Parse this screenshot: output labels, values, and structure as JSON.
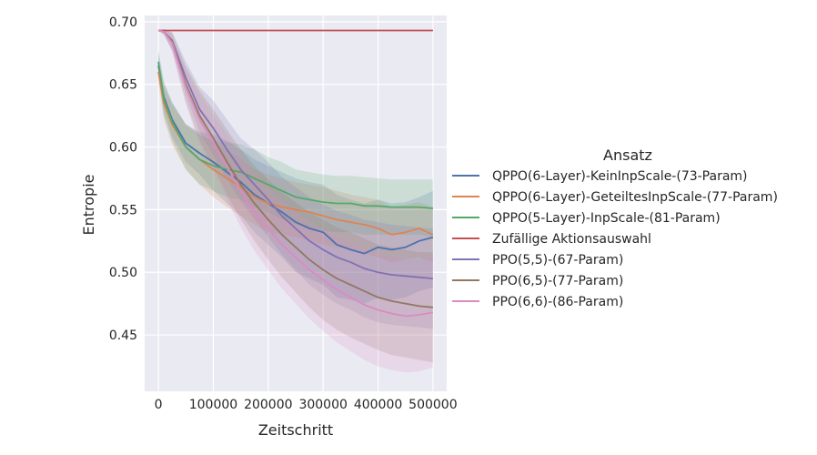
{
  "chart_data": {
    "type": "line",
    "xlabel": "Zeitschritt",
    "ylabel": "Entropie",
    "xlim": [
      -25000,
      525000
    ],
    "ylim": [
      0.405,
      0.705
    ],
    "xticks": [
      0,
      100000,
      200000,
      300000,
      400000,
      500000
    ],
    "xtick_labels": [
      "0",
      "100000",
      "200000",
      "300000",
      "400000",
      "500000"
    ],
    "yticks": [
      0.45,
      0.5,
      0.55,
      0.6,
      0.65,
      0.7
    ],
    "ytick_labels": [
      "0.45",
      "0.50",
      "0.55",
      "0.60",
      "0.65",
      "0.70"
    ],
    "grid": true,
    "legend": {
      "title": "Ansatz",
      "placement": "right"
    },
    "series": [
      {
        "name": "QPPO(6-Layer)-KeinInpScale-(73-Param)",
        "color": "#4c72b0",
        "x": [
          0,
          10000,
          25000,
          50000,
          75000,
          100000,
          125000,
          150000,
          175000,
          200000,
          225000,
          250000,
          275000,
          300000,
          325000,
          350000,
          375000,
          400000,
          425000,
          450000,
          475000,
          500000
        ],
        "y": [
          0.665,
          0.64,
          0.622,
          0.603,
          0.595,
          0.588,
          0.58,
          0.572,
          0.562,
          0.555,
          0.548,
          0.54,
          0.535,
          0.532,
          0.522,
          0.518,
          0.515,
          0.52,
          0.518,
          0.52,
          0.525,
          0.528
        ],
        "lower": [
          0.655,
          0.628,
          0.608,
          0.588,
          0.578,
          0.565,
          0.555,
          0.545,
          0.532,
          0.522,
          0.512,
          0.5,
          0.495,
          0.49,
          0.48,
          0.478,
          0.475,
          0.48,
          0.478,
          0.48,
          0.485,
          0.488
        ],
        "upper": [
          0.675,
          0.652,
          0.636,
          0.618,
          0.612,
          0.61,
          0.605,
          0.598,
          0.59,
          0.585,
          0.58,
          0.575,
          0.572,
          0.57,
          0.562,
          0.558,
          0.555,
          0.558,
          0.555,
          0.556,
          0.56,
          0.565
        ]
      },
      {
        "name": "QPPO(6-Layer)-GeteiltesInpScale-(77-Param)",
        "color": "#dd8452",
        "x": [
          0,
          10000,
          25000,
          50000,
          75000,
          100000,
          125000,
          150000,
          175000,
          200000,
          225000,
          250000,
          275000,
          300000,
          325000,
          350000,
          375000,
          400000,
          425000,
          450000,
          475000,
          500000
        ],
        "y": [
          0.66,
          0.635,
          0.618,
          0.6,
          0.59,
          0.582,
          0.575,
          0.568,
          0.56,
          0.555,
          0.552,
          0.55,
          0.548,
          0.545,
          0.542,
          0.54,
          0.538,
          0.535,
          0.53,
          0.532,
          0.535,
          0.53
        ],
        "lower": [
          0.65,
          0.622,
          0.602,
          0.582,
          0.57,
          0.56,
          0.552,
          0.545,
          0.538,
          0.532,
          0.53,
          0.528,
          0.525,
          0.522,
          0.52,
          0.518,
          0.515,
          0.512,
          0.508,
          0.51,
          0.512,
          0.508
        ],
        "upper": [
          0.67,
          0.648,
          0.634,
          0.618,
          0.61,
          0.604,
          0.598,
          0.59,
          0.582,
          0.578,
          0.575,
          0.572,
          0.57,
          0.568,
          0.565,
          0.562,
          0.56,
          0.558,
          0.552,
          0.554,
          0.556,
          0.552
        ]
      },
      {
        "name": "QPPO(5-Layer)-InpScale-(81-Param)",
        "color": "#55a868",
        "x": [
          0,
          10000,
          25000,
          50000,
          75000,
          100000,
          125000,
          150000,
          175000,
          200000,
          225000,
          250000,
          275000,
          300000,
          325000,
          350000,
          375000,
          400000,
          425000,
          450000,
          475000,
          500000
        ],
        "y": [
          0.668,
          0.638,
          0.62,
          0.6,
          0.59,
          0.585,
          0.582,
          0.58,
          0.575,
          0.57,
          0.565,
          0.56,
          0.558,
          0.556,
          0.555,
          0.555,
          0.553,
          0.553,
          0.552,
          0.552,
          0.552,
          0.551
        ],
        "lower": [
          0.658,
          0.625,
          0.605,
          0.582,
          0.57,
          0.565,
          0.56,
          0.558,
          0.552,
          0.548,
          0.542,
          0.538,
          0.535,
          0.533,
          0.532,
          0.532,
          0.53,
          0.53,
          0.53,
          0.53,
          0.53,
          0.528
        ],
        "upper": [
          0.678,
          0.651,
          0.635,
          0.618,
          0.61,
          0.605,
          0.604,
          0.602,
          0.598,
          0.592,
          0.588,
          0.582,
          0.58,
          0.578,
          0.577,
          0.577,
          0.576,
          0.575,
          0.574,
          0.574,
          0.574,
          0.574
        ]
      },
      {
        "name": "Zufällige Aktionsauswahl",
        "color": "#c44e52",
        "x": [
          0,
          500000
        ],
        "y": [
          0.693,
          0.693
        ]
      },
      {
        "name": "PPO(5,5)-(67-Param)",
        "color": "#8172b3",
        "x": [
          0,
          10000,
          25000,
          50000,
          75000,
          100000,
          125000,
          150000,
          175000,
          200000,
          225000,
          250000,
          275000,
          300000,
          325000,
          350000,
          375000,
          400000,
          425000,
          450000,
          475000,
          500000
        ],
        "y": [
          0.693,
          0.692,
          0.685,
          0.655,
          0.63,
          0.615,
          0.598,
          0.582,
          0.57,
          0.558,
          0.545,
          0.535,
          0.525,
          0.518,
          0.512,
          0.508,
          0.503,
          0.5,
          0.498,
          0.497,
          0.496,
          0.495
        ],
        "lower": [
          0.693,
          0.69,
          0.678,
          0.642,
          0.612,
          0.593,
          0.574,
          0.557,
          0.542,
          0.528,
          0.514,
          0.502,
          0.49,
          0.482,
          0.475,
          0.47,
          0.464,
          0.46,
          0.458,
          0.457,
          0.456,
          0.455
        ],
        "upper": [
          0.693,
          0.694,
          0.692,
          0.668,
          0.648,
          0.637,
          0.622,
          0.607,
          0.598,
          0.588,
          0.576,
          0.568,
          0.56,
          0.554,
          0.549,
          0.546,
          0.542,
          0.54,
          0.538,
          0.537,
          0.536,
          0.535
        ]
      },
      {
        "name": "PPO(6,5)-(77-Param)",
        "color": "#937860",
        "x": [
          0,
          10000,
          25000,
          50000,
          75000,
          100000,
          125000,
          150000,
          175000,
          200000,
          225000,
          250000,
          275000,
          300000,
          325000,
          350000,
          375000,
          400000,
          425000,
          450000,
          475000,
          500000
        ],
        "y": [
          0.693,
          0.692,
          0.684,
          0.65,
          0.625,
          0.607,
          0.588,
          0.57,
          0.555,
          0.542,
          0.53,
          0.52,
          0.51,
          0.502,
          0.495,
          0.49,
          0.485,
          0.48,
          0.477,
          0.475,
          0.473,
          0.472
        ],
        "lower": [
          0.693,
          0.69,
          0.677,
          0.636,
          0.605,
          0.584,
          0.562,
          0.542,
          0.525,
          0.51,
          0.496,
          0.484,
          0.472,
          0.462,
          0.454,
          0.448,
          0.443,
          0.438,
          0.434,
          0.432,
          0.43,
          0.428
        ],
        "upper": [
          0.693,
          0.694,
          0.691,
          0.664,
          0.645,
          0.63,
          0.614,
          0.598,
          0.585,
          0.574,
          0.564,
          0.556,
          0.548,
          0.542,
          0.536,
          0.532,
          0.527,
          0.522,
          0.52,
          0.518,
          0.516,
          0.516
        ]
      },
      {
        "name": "PPO(6,6)-(86-Param)",
        "color": "#da8bc3",
        "x": [
          0,
          10000,
          25000,
          50000,
          75000,
          100000,
          125000,
          150000,
          175000,
          200000,
          225000,
          250000,
          275000,
          300000,
          325000,
          350000,
          375000,
          400000,
          425000,
          450000,
          475000,
          500000
        ],
        "y": [
          0.693,
          0.692,
          0.683,
          0.648,
          0.622,
          0.603,
          0.584,
          0.565,
          0.548,
          0.535,
          0.522,
          0.512,
          0.502,
          0.494,
          0.486,
          0.48,
          0.474,
          0.47,
          0.467,
          0.465,
          0.466,
          0.468
        ],
        "lower": [
          0.693,
          0.69,
          0.676,
          0.634,
          0.602,
          0.58,
          0.558,
          0.536,
          0.517,
          0.502,
          0.487,
          0.475,
          0.463,
          0.453,
          0.444,
          0.437,
          0.43,
          0.425,
          0.422,
          0.42,
          0.421,
          0.424
        ],
        "upper": [
          0.693,
          0.694,
          0.69,
          0.662,
          0.642,
          0.626,
          0.61,
          0.594,
          0.579,
          0.568,
          0.557,
          0.549,
          0.541,
          0.535,
          0.528,
          0.523,
          0.518,
          0.515,
          0.512,
          0.51,
          0.511,
          0.512
        ]
      }
    ]
  }
}
